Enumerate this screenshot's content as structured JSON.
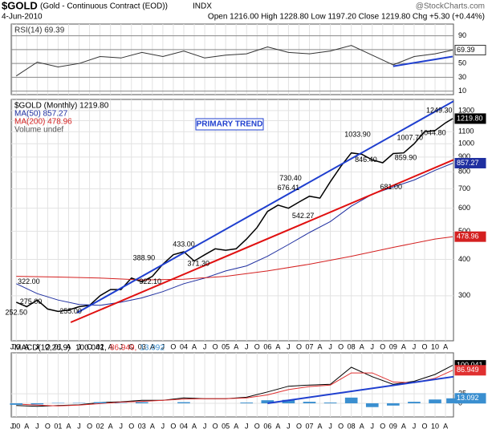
{
  "header": {
    "symbol": "$GOLD",
    "name": "(Gold - Continuous Contract (EOD))",
    "exchange": "INDX",
    "source": "@StockCharts.com",
    "date": "4-Jun-2010",
    "quote": "Open 1216.00  High 1228.80  Low 1197.20  Close 1219.80  Chg +5.30 (+0.44%)"
  },
  "chart_data": [
    {
      "type": "line",
      "xlim": [
        1999.88,
        2010.44
      ],
      "ylim": [
        5,
        107
      ],
      "yticks": [
        10,
        30,
        50,
        70,
        90
      ],
      "x": [
        2000.0,
        2000.5,
        2001.0,
        2001.5,
        2002.0,
        2002.5,
        2003.0,
        2003.5,
        2004.0,
        2004.5,
        2005.0,
        2005.5,
        2006.0,
        2006.5,
        2007.0,
        2007.5,
        2008.0,
        2008.5,
        2009.0,
        2009.5,
        2010.0,
        2010.42
      ],
      "series": [
        {
          "name": "RSI(14) 69.39",
          "color": "#333333",
          "last_label": "69.39",
          "values": [
            32,
            52,
            45,
            50,
            60,
            58,
            66,
            60,
            68,
            58,
            62,
            64,
            74,
            66,
            64,
            68,
            76,
            62,
            48,
            60,
            64,
            69.39
          ]
        }
      ],
      "trendlines": [
        {
          "color": "#1f3fcf",
          "x": [
            2009.0,
            2010.42
          ],
          "values": [
            46,
            60
          ]
        }
      ]
    },
    {
      "type": "line",
      "log_y": true,
      "xlim": [
        1999.88,
        2010.44
      ],
      "ylim": [
        210,
        1420
      ],
      "yticks": [
        300,
        400,
        500,
        600,
        700,
        800,
        900,
        1000,
        1100,
        1200,
        1300
      ],
      "xticks": [
        {
          "value": 1999.9,
          "label": "J"
        },
        {
          "value": 2000.0,
          "label": "00"
        },
        {
          "value": 2000.25,
          "label": "A"
        },
        {
          "value": 2000.5,
          "label": "J"
        },
        {
          "value": 2000.75,
          "label": "O"
        },
        {
          "value": 2001.0,
          "label": "01"
        },
        {
          "value": 2001.25,
          "label": "A"
        },
        {
          "value": 2001.5,
          "label": "J"
        },
        {
          "value": 2001.75,
          "label": "O"
        },
        {
          "value": 2002.0,
          "label": "02"
        },
        {
          "value": 2002.25,
          "label": "A"
        },
        {
          "value": 2002.5,
          "label": "J"
        },
        {
          "value": 2002.75,
          "label": "O"
        },
        {
          "value": 2003.0,
          "label": "03"
        },
        {
          "value": 2003.25,
          "label": "A"
        },
        {
          "value": 2003.5,
          "label": "J"
        },
        {
          "value": 2003.75,
          "label": "O"
        },
        {
          "value": 2004.0,
          "label": "04"
        },
        {
          "value": 2004.25,
          "label": "A"
        },
        {
          "value": 2004.5,
          "label": "J"
        },
        {
          "value": 2004.75,
          "label": "O"
        },
        {
          "value": 2005.0,
          "label": "05"
        },
        {
          "value": 2005.25,
          "label": "A"
        },
        {
          "value": 2005.5,
          "label": "J"
        },
        {
          "value": 2005.75,
          "label": "O"
        },
        {
          "value": 2006.0,
          "label": "06"
        },
        {
          "value": 2006.25,
          "label": "A"
        },
        {
          "value": 2006.5,
          "label": "J"
        },
        {
          "value": 2006.75,
          "label": "O"
        },
        {
          "value": 2007.0,
          "label": "07"
        },
        {
          "value": 2007.25,
          "label": "A"
        },
        {
          "value": 2007.5,
          "label": "J"
        },
        {
          "value": 2007.75,
          "label": "O"
        },
        {
          "value": 2008.0,
          "label": "08"
        },
        {
          "value": 2008.25,
          "label": "A"
        },
        {
          "value": 2008.5,
          "label": "J"
        },
        {
          "value": 2008.75,
          "label": "O"
        },
        {
          "value": 2009.0,
          "label": "09"
        },
        {
          "value": 2009.25,
          "label": "A"
        },
        {
          "value": 2009.5,
          "label": "J"
        },
        {
          "value": 2009.75,
          "label": "O"
        },
        {
          "value": 2010.0,
          "label": "10"
        },
        {
          "value": 2010.25,
          "label": "A"
        }
      ],
      "x": [
        2000.0,
        2000.25,
        2000.5,
        2000.75,
        2001.0,
        2001.25,
        2001.5,
        2001.75,
        2002.0,
        2002.25,
        2002.5,
        2002.75,
        2003.0,
        2003.25,
        2003.5,
        2003.75,
        2004.0,
        2004.25,
        2004.5,
        2004.75,
        2005.0,
        2005.25,
        2005.5,
        2005.75,
        2006.0,
        2006.25,
        2006.5,
        2006.75,
        2007.0,
        2007.25,
        2007.5,
        2007.75,
        2008.0,
        2008.25,
        2008.5,
        2008.75,
        2009.0,
        2009.25,
        2009.5,
        2009.75,
        2010.0,
        2010.25,
        2010.42
      ],
      "series": [
        {
          "name": "$GOLD (Monthly) 1219.80",
          "color": "#000000",
          "last_label": "1219.80",
          "values": [
            285,
            275,
            290,
            270,
            265,
            268,
            275,
            278,
            300,
            315,
            315,
            345,
            335,
            350,
            385,
            415,
            425,
            395,
            415,
            435,
            430,
            435,
            470,
            515,
            585,
            615,
            600,
            630,
            660,
            650,
            740,
            835,
            930,
            920,
            880,
            860,
            925,
            930,
            1000,
            1100,
            1110,
            1180,
            1219.8
          ]
        },
        {
          "name": "MA(50) 857.27",
          "color": "#1f2fa0",
          "last_label": "857.27",
          "x": [
            2000.0,
            2000.5,
            2001.0,
            2001.5,
            2002.0,
            2002.5,
            2003.0,
            2003.5,
            2004.0,
            2004.5,
            2005.0,
            2005.5,
            2006.0,
            2006.5,
            2007.0,
            2007.5,
            2008.0,
            2008.5,
            2009.0,
            2009.5,
            2010.0,
            2010.42
          ],
          "values": [
            330,
            305,
            290,
            280,
            278,
            285,
            295,
            310,
            330,
            345,
            365,
            380,
            410,
            450,
            495,
            540,
            610,
            670,
            710,
            750,
            810,
            857.27
          ]
        },
        {
          "name": "MA(200) 478.96",
          "color": "#d42020",
          "last_label": "478.96",
          "x": [
            2000.0,
            2001.0,
            2002.0,
            2003.0,
            2004.0,
            2005.0,
            2006.0,
            2007.0,
            2008.0,
            2009.0,
            2010.0,
            2010.42
          ],
          "values": [
            350,
            348,
            345,
            340,
            342,
            350,
            365,
            385,
            410,
            440,
            470,
            478.96
          ]
        }
      ],
      "legend_extra": "Volume undef",
      "trendlines": [
        {
          "color": "#1f3fcf",
          "x": [
            2001.45,
            2010.44
          ],
          "values": [
            262,
            1400
          ]
        },
        {
          "color": "#e01010",
          "x": [
            2001.3,
            2010.44
          ],
          "values": [
            243,
            880
          ]
        }
      ],
      "annotation_title": "PRIMARY TREND",
      "annotations": [
        {
          "x": 2000.0,
          "value": 252.5,
          "label": "252.50"
        },
        {
          "x": 2000.35,
          "value": 275,
          "label": "275.00"
        },
        {
          "x": 2000.3,
          "value": 322,
          "label": "322.00"
        },
        {
          "x": 2001.3,
          "value": 255,
          "label": "255.00"
        },
        {
          "x": 2003.05,
          "value": 388.9,
          "label": "388.90"
        },
        {
          "x": 2003.2,
          "value": 322.1,
          "label": "322.10"
        },
        {
          "x": 2004.0,
          "value": 433,
          "label": "433.00"
        },
        {
          "x": 2004.35,
          "value": 371.3,
          "label": "371.30"
        },
        {
          "x": 2006.55,
          "value": 730.4,
          "label": "730.40"
        },
        {
          "x": 2006.5,
          "value": 676.41,
          "label": "676.41"
        },
        {
          "x": 2006.85,
          "value": 542.27,
          "label": "542.27"
        },
        {
          "x": 2008.15,
          "value": 1033.9,
          "label": "1033.90"
        },
        {
          "x": 2008.35,
          "value": 846.4,
          "label": "846.40"
        },
        {
          "x": 2008.95,
          "value": 681,
          "label": "681.00"
        },
        {
          "x": 2009.4,
          "value": 1007.7,
          "label": "1007.70"
        },
        {
          "x": 2009.3,
          "value": 859.9,
          "label": "859.90"
        },
        {
          "x": 2009.95,
          "value": 1044.8,
          "label": "1044.80"
        },
        {
          "x": 2010.1,
          "value": 1249.3,
          "label": "1249.30"
        }
      ]
    },
    {
      "type": "line",
      "title": "MACD(12,26,9)",
      "xlim": [
        1999.88,
        2010.44
      ],
      "ylim": [
        -36,
        133
      ],
      "yticks": [
        0,
        25
      ],
      "x": [
        2000.0,
        2000.5,
        2001.0,
        2001.5,
        2002.0,
        2002.5,
        2003.0,
        2003.5,
        2004.0,
        2004.5,
        2005.0,
        2005.5,
        2006.0,
        2006.5,
        2007.0,
        2007.5,
        2008.0,
        2008.5,
        2009.0,
        2009.5,
        2010.0,
        2010.42
      ],
      "series": [
        {
          "name": "100.041,",
          "color": "#000000",
          "last_label": "100.041",
          "values": [
            -6,
            -8,
            -6,
            -4,
            2,
            4,
            8,
            8,
            14,
            12,
            12,
            16,
            30,
            45,
            48,
            50,
            95,
            70,
            50,
            58,
            76,
            100.041
          ]
        },
        {
          "name": "86.949,",
          "color": "#e03030",
          "last_label": "86.949",
          "values": [
            -2,
            -5,
            -7,
            -5,
            -1,
            3,
            5,
            8,
            11,
            12,
            12,
            14,
            22,
            36,
            44,
            48,
            80,
            80,
            56,
            54,
            66,
            86.949
          ]
        },
        {
          "name": "13.092",
          "color": "#3a8fd0",
          "style": "bar",
          "last_label": "13.092",
          "values": [
            -4,
            -3,
            1,
            1,
            3,
            1,
            3,
            0,
            3,
            0,
            0,
            2,
            8,
            9,
            4,
            2,
            15,
            -10,
            -6,
            4,
            10,
            13.092
          ]
        }
      ],
      "trendlines": [
        {
          "color": "#1f3fcf",
          "x": [
            2006.0,
            2010.44
          ],
          "values": [
            0,
            70
          ]
        }
      ]
    }
  ]
}
